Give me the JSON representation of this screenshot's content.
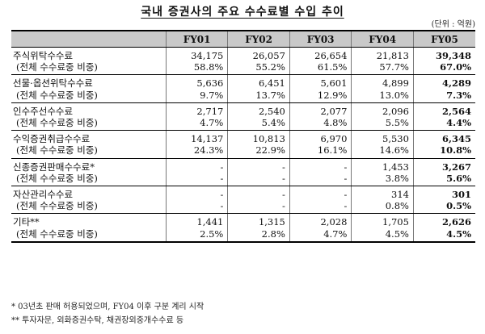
{
  "title": "국내 증권사의 주요 수수료별 수입 추이",
  "unit_note": "(단위 : 억원)",
  "columns": [
    "",
    "FY01",
    "FY02",
    "FY03",
    "FY04",
    "FY05"
  ],
  "groups": [
    {
      "label": "주식위탁수수료",
      "values": [
        "34,175",
        "26,057",
        "26,654",
        "21,813",
        "39,348"
      ],
      "share_label": "(전체 수수료중 비중)",
      "shares": [
        "58.8%",
        "55.2%",
        "61.5%",
        "57.7%",
        "67.0%"
      ]
    },
    {
      "label": "선물·옵션위탁수수료",
      "values": [
        "5,636",
        "6,451",
        "5,601",
        "4,899",
        "4,289"
      ],
      "share_label": "(전체 수수료중 비중)",
      "shares": [
        "9.7%",
        "13.7%",
        "12.9%",
        "13.0%",
        "7.3%"
      ]
    },
    {
      "label": "인수주선수수료",
      "values": [
        "2,717",
        "2,540",
        "2,077",
        "2,096",
        "2,564"
      ],
      "share_label": "(전체 수수료중 비중)",
      "shares": [
        "4.7%",
        "5.4%",
        "4.8%",
        "5.5%",
        "4.4%"
      ]
    },
    {
      "label": "수익증권취급수수료",
      "values": [
        "14,137",
        "10,813",
        "6,970",
        "5,530",
        "6,345"
      ],
      "share_label": "(전체 수수료중 비중)",
      "shares": [
        "24.3%",
        "22.9%",
        "16.1%",
        "14.6%",
        "10.8%"
      ]
    },
    {
      "label": "신종증권판매수수료*",
      "values": [
        "-",
        "-",
        "-",
        "1,453",
        "3,267"
      ],
      "share_label": "(전체 수수료중 비중)",
      "shares": [
        "-",
        "-",
        "-",
        "3.8%",
        "5.6%"
      ]
    },
    {
      "label": "자산관리수수료",
      "values": [
        "-",
        "-",
        "-",
        "314",
        "301"
      ],
      "share_label": "(전체 수수료중 비중)",
      "shares": [
        "-",
        "-",
        "-",
        "0.8%",
        "0.5%"
      ]
    },
    {
      "label": "기타**",
      "values": [
        "1,441",
        "1,315",
        "2,028",
        "1,705",
        "2,626"
      ],
      "share_label": "(전체 수수료중 비중)",
      "shares": [
        "2.5%",
        "2.8%",
        "4.7%",
        "4.5%",
        "4.5%"
      ]
    }
  ],
  "footnotes": [
    "* 03년초 판매 허용되었으며, FY04 이후 구분 계리 시작",
    "** 투자자문, 외화증권수탁, 채권장외중개수수료 등"
  ]
}
